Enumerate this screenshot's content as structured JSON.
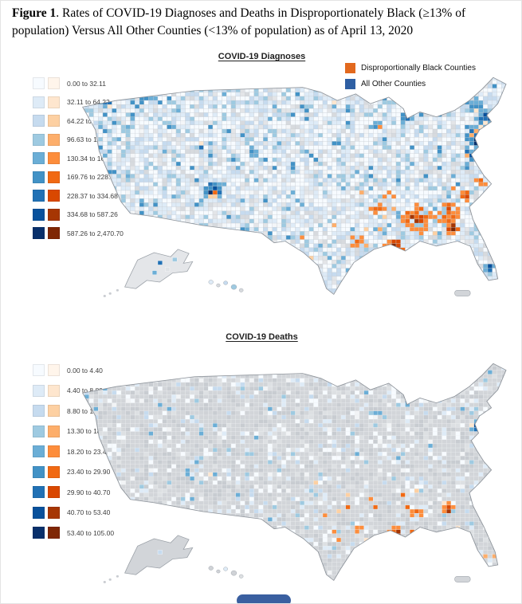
{
  "figure": {
    "label": "Figure 1",
    "caption": ". Rates of COVID-19 Diagnoses and Deaths in Disproportionately Black (≥13% of population) Versus All Other Counties (<13% of population) as of April 13, 2020"
  },
  "legend": {
    "black_counties_label": "Disproportionally Black Counties",
    "other_counties_label": "All Other Counties",
    "black_swatch_color": "#E2691E",
    "other_swatch_color": "#2E5FA3"
  },
  "maps": [
    {
      "title": "COVID-19 Diagnoses",
      "bins": [
        "0.00 to 32.11",
        "32.11 to 64.22",
        "64.22 to 96.63",
        "96.63 to 130.34",
        "130.34 to 169.76",
        "169.76 to 228.37",
        "228.37 to 334.68",
        "334.68 to 587.26",
        "587.26 to 2,470.70"
      ]
    },
    {
      "title": "COVID-19 Deaths",
      "bins": [
        "0.00 to 4.40",
        "4.40 to 8.80",
        "8.80 to 13.30",
        "13.30 to 18.20",
        "18.20 to 23.40",
        "23.40 to 29.90",
        "29.90 to 40.70",
        "40.70 to 53.40",
        "53.40 to 105.00"
      ]
    }
  ],
  "colors": {
    "blue_ramp": [
      "#f7fbff",
      "#deebf7",
      "#c6dbef",
      "#9ecae1",
      "#6baed6",
      "#4292c6",
      "#2171b5",
      "#08519c",
      "#08306b"
    ],
    "orange_ramp": [
      "#fff5eb",
      "#fee6ce",
      "#fdd0a2",
      "#fdae6b",
      "#fd8d3c",
      "#f16913",
      "#d94801",
      "#a63603",
      "#7f2704"
    ],
    "no_data": "#d9d9d9"
  }
}
